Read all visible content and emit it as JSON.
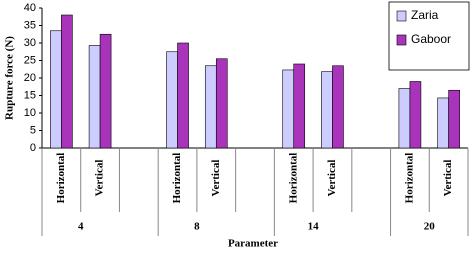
{
  "chart_data": {
    "type": "bar",
    "ylabel": "Rupture force (N)",
    "xlabel": "Parameter",
    "categories": [
      "Horizontal",
      "Vertical",
      "Horizontal",
      "Vertical",
      "Horizontal",
      "Vertical",
      "Horizontal",
      "Vertical"
    ],
    "groups": [
      "4",
      "8",
      "14",
      "20"
    ],
    "series": [
      {
        "name": "Zaria",
        "color": "#ccccff",
        "values": [
          33.5,
          29.3,
          27.5,
          23.5,
          22.3,
          21.8,
          17,
          14.3
        ]
      },
      {
        "name": "Gaboor",
        "color": "#aa33bb",
        "values": [
          38,
          32.5,
          30,
          25.5,
          24,
          23.5,
          19,
          16.5
        ]
      }
    ],
    "ylim": [
      0,
      40
    ],
    "yticks": [
      0,
      5,
      10,
      15,
      20,
      25,
      30,
      35,
      40
    ],
    "legend": "upper right"
  }
}
